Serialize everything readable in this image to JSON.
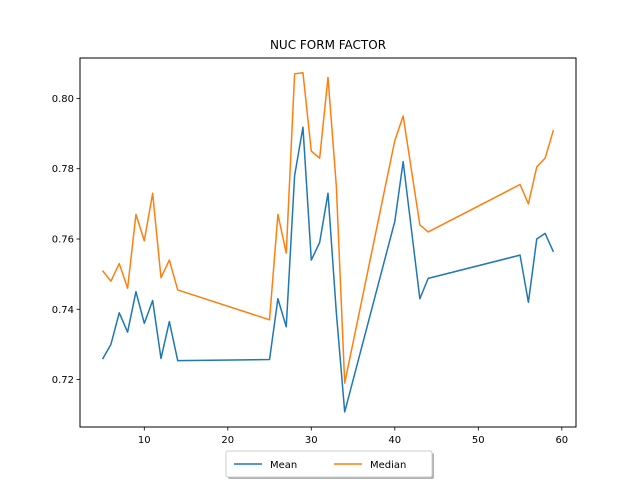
{
  "chart_data": {
    "type": "line",
    "title": "NUC FORM FACTOR",
    "xlabel": "",
    "ylabel": "",
    "xlim": [
      2.3,
      61.7
    ],
    "ylim": [
      0.7065,
      0.8115
    ],
    "x_ticks": [
      10,
      20,
      30,
      40,
      50,
      60
    ],
    "y_ticks": [
      0.72,
      0.74,
      0.76,
      0.78,
      0.8
    ],
    "y_tick_labels": [
      "0.72",
      "0.74",
      "0.76",
      "0.78",
      "0.80"
    ],
    "grid": false,
    "legend_placement": "bottom-center",
    "series": [
      {
        "name": "Mean",
        "color": "#1f77b4",
        "x": [
          5,
          6,
          7,
          8,
          9,
          10,
          11,
          12,
          13,
          14,
          25,
          26,
          27,
          28,
          29,
          30,
          31,
          32,
          33,
          34,
          40,
          41,
          43,
          44,
          55,
          56,
          57,
          58,
          59
        ],
        "y": [
          0.7258,
          0.73,
          0.739,
          0.7335,
          0.745,
          0.736,
          0.7425,
          0.726,
          0.7365,
          0.7254,
          0.7257,
          0.743,
          0.735,
          0.778,
          0.7918,
          0.754,
          0.759,
          0.773,
          0.739,
          0.7108,
          0.765,
          0.782,
          0.743,
          0.7488,
          0.7554,
          0.742,
          0.76,
          0.7616,
          0.7563
        ]
      },
      {
        "name": "Median",
        "color": "#ff7f0e",
        "x": [
          5,
          6,
          7,
          8,
          9,
          10,
          11,
          12,
          13,
          14,
          25,
          26,
          27,
          28,
          29,
          30,
          31,
          32,
          33,
          34,
          40,
          41,
          43,
          44,
          55,
          56,
          57,
          58,
          59
        ],
        "y": [
          0.751,
          0.748,
          0.753,
          0.746,
          0.767,
          0.7595,
          0.773,
          0.749,
          0.754,
          0.7455,
          0.737,
          0.767,
          0.756,
          0.807,
          0.8073,
          0.785,
          0.783,
          0.806,
          0.775,
          0.719,
          0.788,
          0.795,
          0.764,
          0.762,
          0.7755,
          0.77,
          0.7805,
          0.783,
          0.791
        ]
      }
    ]
  }
}
